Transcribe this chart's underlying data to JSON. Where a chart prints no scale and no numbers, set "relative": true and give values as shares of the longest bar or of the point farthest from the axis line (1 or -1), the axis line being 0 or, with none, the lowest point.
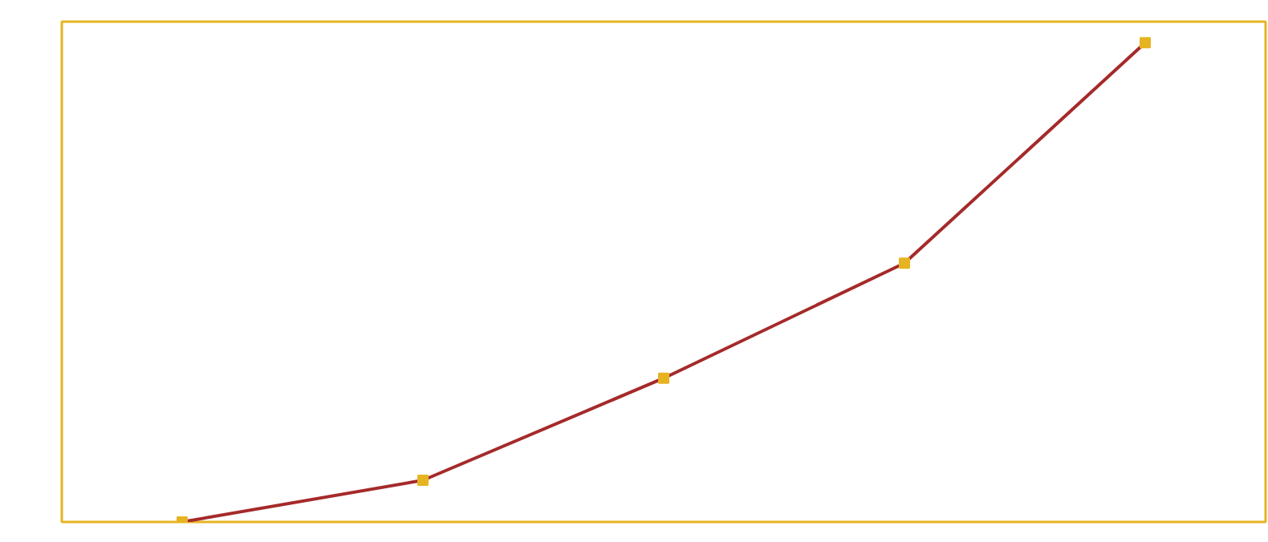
{
  "chart_data": {
    "type": "line",
    "relative": true,
    "categories": [
      null,
      null,
      null,
      null,
      null
    ],
    "marker": "square",
    "grid": false,
    "series": [
      {
        "color": "#a52a2a",
        "colors": [
          "#e6b422",
          "#e6b422",
          "#e6b422",
          "#e6b422",
          "#e6b422"
        ],
        "values": [
          0,
          0.087,
          0.3,
          0.54,
          1
        ]
      }
    ]
  }
}
